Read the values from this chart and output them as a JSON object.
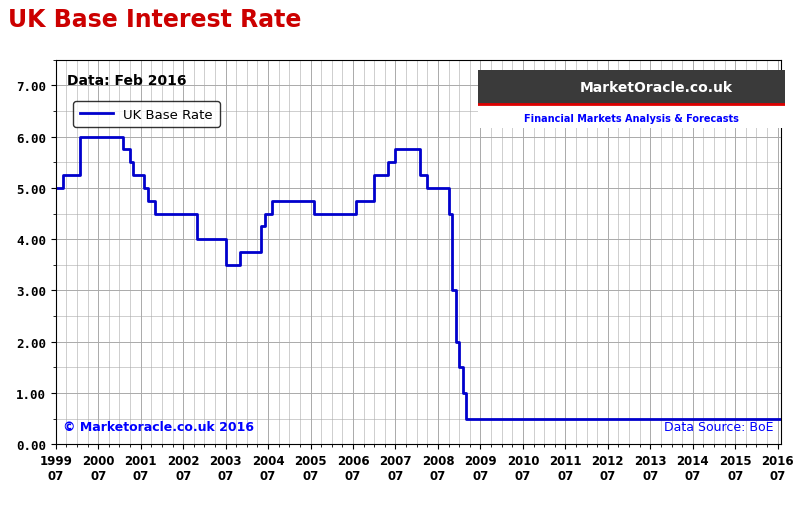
{
  "title": "UK Base Interest Rate",
  "subtitle": "Data: Feb 2016",
  "legend_label": "UK Base Rate",
  "line_color": "#0000cc",
  "title_color": "#cc0000",
  "background_color": "#ffffff",
  "grid_color": "#aaaaaa",
  "ylim": [
    0.0,
    7.5
  ],
  "yticks": [
    0.0,
    1.0,
    2.0,
    3.0,
    4.0,
    5.0,
    6.0,
    7.0
  ],
  "ytick_labels": [
    "0.00",
    "1.00",
    "2.00",
    "3.00",
    "4.00",
    "5.00",
    "6.00",
    "7.00"
  ],
  "xlabel_years": [
    1999,
    2000,
    2001,
    2002,
    2003,
    2004,
    2005,
    2006,
    2007,
    2008,
    2009,
    2010,
    2011,
    2012,
    2013,
    2014,
    2015,
    2016
  ],
  "copyright_text": "© Marketoracle.co.uk 2016",
  "copyright_color": "#0000ff",
  "datasource_text": "Data Source: BoE",
  "datasource_color": "#0000ff",
  "xmin": 1999.5,
  "xmax": 2016.58,
  "rate_changes": [
    [
      1999.5,
      5.0
    ],
    [
      1999.67,
      5.25
    ],
    [
      2000.08,
      6.0
    ],
    [
      2001.08,
      5.75
    ],
    [
      2001.25,
      5.5
    ],
    [
      2001.33,
      5.25
    ],
    [
      2001.58,
      5.0
    ],
    [
      2001.67,
      4.75
    ],
    [
      2001.83,
      4.5
    ],
    [
      2002.83,
      4.0
    ],
    [
      2003.5,
      3.5
    ],
    [
      2003.83,
      3.75
    ],
    [
      2004.33,
      4.25
    ],
    [
      2004.42,
      4.5
    ],
    [
      2004.58,
      4.75
    ],
    [
      2005.58,
      4.5
    ],
    [
      2006.58,
      4.75
    ],
    [
      2007.0,
      5.25
    ],
    [
      2007.33,
      5.5
    ],
    [
      2007.5,
      5.75
    ],
    [
      2008.08,
      5.25
    ],
    [
      2008.25,
      5.0
    ],
    [
      2008.75,
      4.5
    ],
    [
      2008.83,
      3.0
    ],
    [
      2008.92,
      2.0
    ],
    [
      2009.0,
      1.5
    ],
    [
      2009.08,
      1.0
    ],
    [
      2009.17,
      0.5
    ],
    [
      2016.58,
      0.5
    ]
  ]
}
